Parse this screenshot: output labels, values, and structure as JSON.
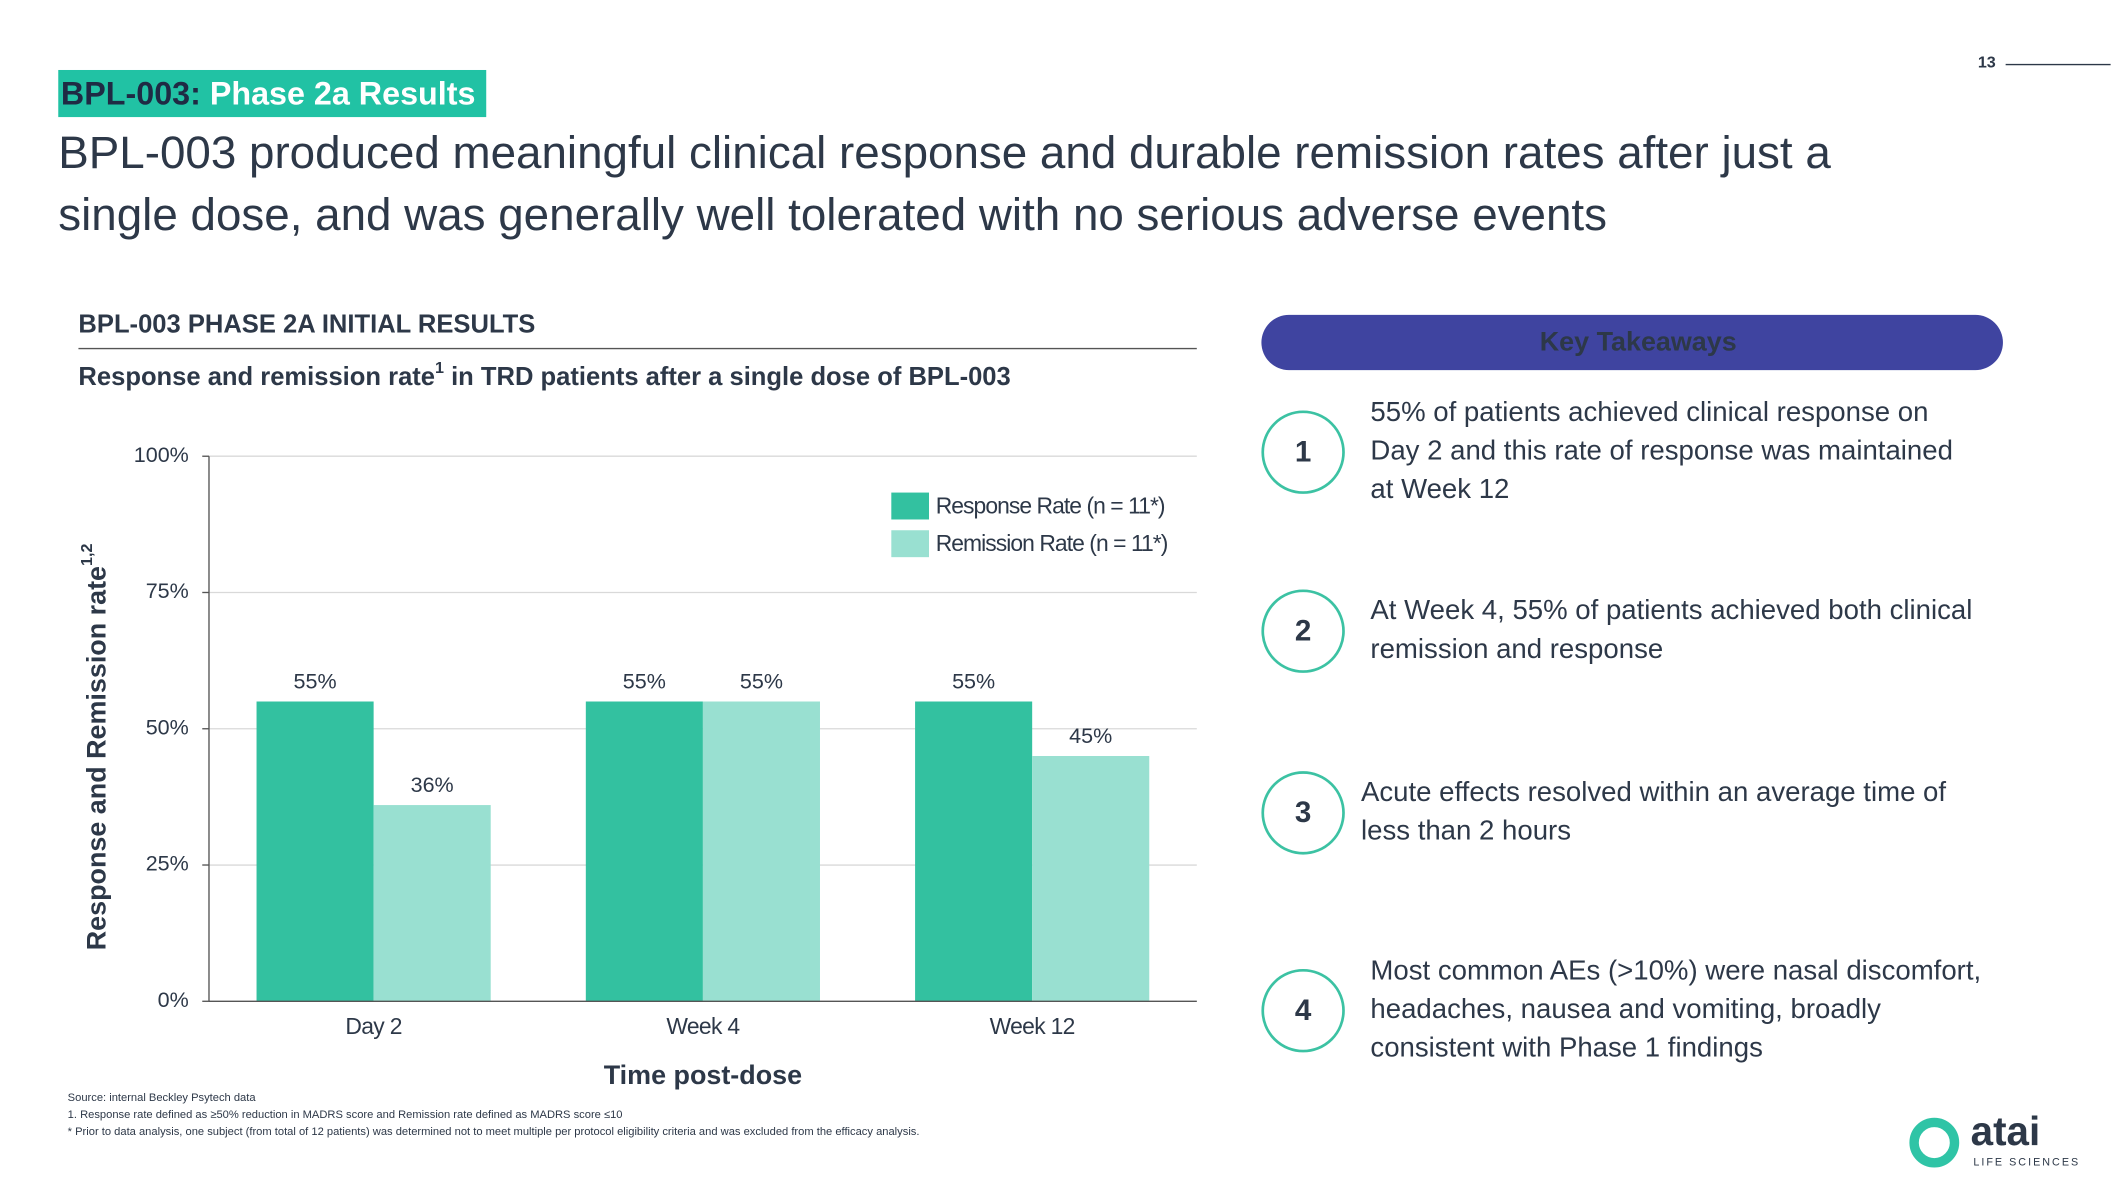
{
  "page_number": "13",
  "header": {
    "tag_prefix": "BPL-003:",
    "tag_suffix": "Phase 2a Results",
    "headline_lines": [
      "BPL-003 produced meaningful clinical response and durable remission rates after just a",
      "single dose, and was generally well tolerated with no serious adverse events"
    ]
  },
  "chart_data": {
    "type": "bar",
    "section_title": "BPL-003 PHASE 2A INITIAL RESULTS",
    "title_parts": [
      "Response and remission rate",
      "1",
      " in TRD patients after a single dose of BPL-003"
    ],
    "y_label": "Response and Remission rate",
    "y_label_sup": "1,2",
    "x_label": "Time post-dose",
    "categories": [
      "Day 2",
      "Week 4",
      "Week 12"
    ],
    "series": [
      {
        "name": "Response Rate (n = 11*)",
        "color": "#33c1a0",
        "values": [
          55,
          55,
          55
        ],
        "value_labels": [
          "55%",
          "55%",
          "55%"
        ]
      },
      {
        "name": "Remission Rate (n = 11*)",
        "color": "#99e0d1",
        "values": [
          36,
          55,
          45
        ],
        "value_labels": [
          "36%",
          "55%",
          "45%"
        ]
      }
    ],
    "ylim": [
      0,
      100
    ],
    "yticks": [
      {
        "value": 0,
        "label": "0%"
      },
      {
        "value": 25,
        "label": "25%"
      },
      {
        "value": 50,
        "label": "50%"
      },
      {
        "value": 75,
        "label": "75%"
      },
      {
        "value": 100,
        "label": "100%"
      }
    ],
    "grid": true,
    "legend": "top-right"
  },
  "takeaways": {
    "title": "Key Takeaways",
    "items": [
      {
        "number": "1",
        "lines": [
          "55% of patients achieved clinical response on",
          "Day 2 and this rate of response was maintained",
          "at Week 12"
        ]
      },
      {
        "number": "2",
        "lines": [
          "At Week 4, 55% of patients achieved both clinical",
          "remission and response"
        ]
      },
      {
        "number": "3",
        "lines": [
          "Acute effects resolved within an average time of",
          "less than 2 hours"
        ]
      },
      {
        "number": "4",
        "lines": [
          "Most common AEs (>10%) were nasal discomfort,",
          "headaches, nausea and vomiting, broadly",
          "consistent with Phase 1 findings"
        ]
      }
    ]
  },
  "footnotes": [
    "Source: internal Beckley Psytech data",
    "1.    Response rate defined as ≥50% reduction in MADRS score and Remission rate defined as MADRS score ≤10",
    "*  Prior to data analysis, one subject (from total of 12 patients) was determined not to meet multiple per protocol eligibility criteria and was excluded from the efficacy analysis."
  ],
  "logo": {
    "name": "atai",
    "tagline": "LIFE SCIENCES"
  }
}
